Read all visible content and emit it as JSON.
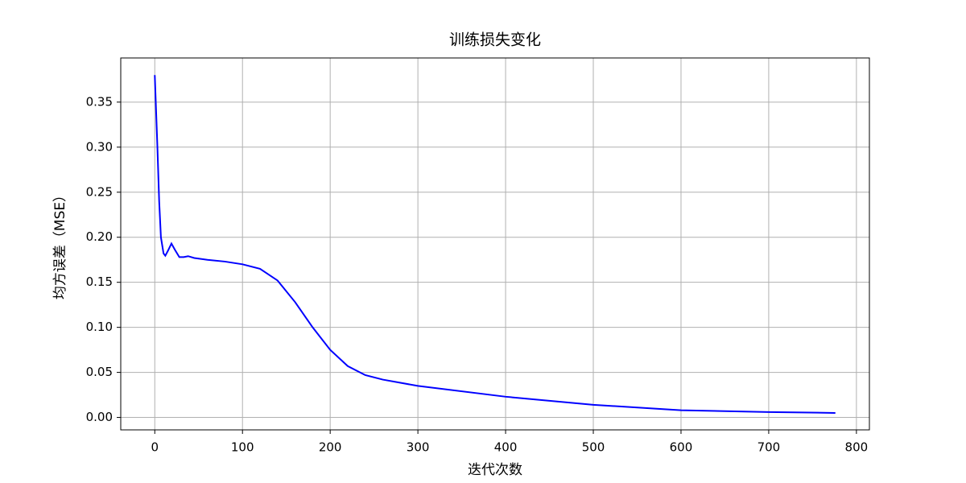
{
  "chart_data": {
    "type": "line",
    "title": "训练损失变化",
    "x_label": "迭代次数",
    "y_label": "均方误差（MSE）",
    "x": [
      0,
      3,
      5,
      7,
      10,
      12,
      15,
      19,
      23,
      28,
      33,
      38,
      45,
      60,
      80,
      100,
      120,
      140,
      160,
      180,
      200,
      220,
      240,
      260,
      300,
      400,
      500,
      600,
      700,
      776
    ],
    "series": [
      {
        "name": "训练损失",
        "color": "#0000ff",
        "values": [
          0.38,
          0.3,
          0.24,
          0.2,
          0.182,
          0.1795,
          0.185,
          0.193,
          0.186,
          0.178,
          0.178,
          0.179,
          0.177,
          0.175,
          0.173,
          0.17,
          0.165,
          0.152,
          0.128,
          0.1,
          0.075,
          0.057,
          0.047,
          0.042,
          0.035,
          0.023,
          0.014,
          0.008,
          0.006,
          0.005
        ]
      }
    ],
    "xlim": [
      -38.8,
      814.8
    ],
    "ylim": [
      -0.0138,
      0.399
    ],
    "xticks": [
      0,
      100,
      200,
      300,
      400,
      500,
      600,
      700,
      800
    ],
    "yticks": [
      {
        "value": 0,
        "label": "0.00"
      },
      {
        "value": 0.05,
        "label": "0.05"
      },
      {
        "value": 0.1,
        "label": "0.10"
      },
      {
        "value": 0.15,
        "label": "0.15"
      },
      {
        "value": 0.2,
        "label": "0.20"
      },
      {
        "value": 0.25,
        "label": "0.25"
      },
      {
        "value": 0.3,
        "label": "0.30"
      },
      {
        "value": 0.35,
        "label": "0.35"
      }
    ],
    "grid": true
  }
}
